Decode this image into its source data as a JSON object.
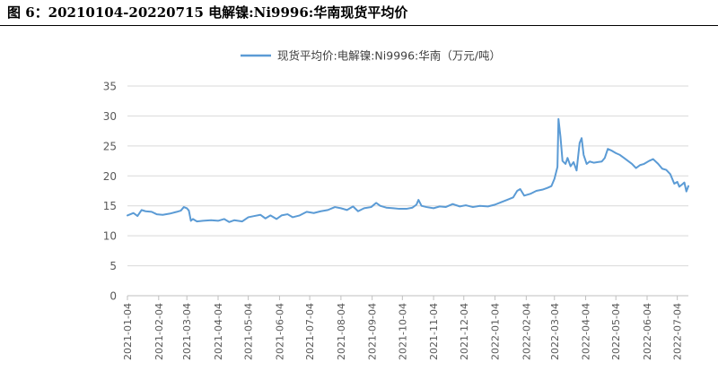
{
  "figure": {
    "title": "图 6：20210104-20220715 电解镍:Ni9996:华南现货平均价"
  },
  "chart_data": {
    "type": "line",
    "title": "",
    "xlabel": "",
    "ylabel": "",
    "ylim": [
      0,
      35
    ],
    "yticks": [
      0,
      5,
      10,
      15,
      20,
      25,
      30,
      35
    ],
    "x_tick_labels": [
      "2021-01-04",
      "2021-02-04",
      "2021-03-04",
      "2021-04-04",
      "2021-05-04",
      "2021-06-04",
      "2021-07-04",
      "2021-08-04",
      "2021-09-04",
      "2021-10-04",
      "2021-11-04",
      "2021-12-04",
      "2022-01-04",
      "2022-02-04",
      "2022-03-04",
      "2022-04-04",
      "2022-05-04",
      "2022-06-04",
      "2022-07-04"
    ],
    "grid": "horizontal",
    "legend_position": "top-center",
    "colors": {
      "series": "#5b9bd5",
      "grid": "#d9d9d9",
      "axis": "#bfbfbf"
    },
    "series": [
      {
        "name": "现货平均价:电解镍:Ni9996:华南（万元/吨）",
        "points": [
          [
            "2021-01-04",
            13.4
          ],
          [
            "2021-01-10",
            13.8
          ],
          [
            "2021-01-14",
            13.3
          ],
          [
            "2021-01-18",
            14.3
          ],
          [
            "2021-01-22",
            14.1
          ],
          [
            "2021-01-28",
            14.0
          ],
          [
            "2021-02-02",
            13.6
          ],
          [
            "2021-02-08",
            13.5
          ],
          [
            "2021-02-15",
            13.7
          ],
          [
            "2021-02-22",
            14.0
          ],
          [
            "2021-02-26",
            14.2
          ],
          [
            "2021-03-01",
            14.8
          ],
          [
            "2021-03-04",
            14.6
          ],
          [
            "2021-03-06",
            14.2
          ],
          [
            "2021-03-08",
            12.5
          ],
          [
            "2021-03-10",
            12.8
          ],
          [
            "2021-03-14",
            12.4
          ],
          [
            "2021-03-20",
            12.5
          ],
          [
            "2021-03-28",
            12.6
          ],
          [
            "2021-04-04",
            12.5
          ],
          [
            "2021-04-10",
            12.8
          ],
          [
            "2021-04-15",
            12.3
          ],
          [
            "2021-04-20",
            12.6
          ],
          [
            "2021-04-28",
            12.4
          ],
          [
            "2021-05-04",
            13.1
          ],
          [
            "2021-05-10",
            13.3
          ],
          [
            "2021-05-16",
            13.5
          ],
          [
            "2021-05-21",
            12.9
          ],
          [
            "2021-05-26",
            13.4
          ],
          [
            "2021-06-01",
            12.8
          ],
          [
            "2021-06-06",
            13.4
          ],
          [
            "2021-06-12",
            13.6
          ],
          [
            "2021-06-17",
            13.1
          ],
          [
            "2021-06-24",
            13.4
          ],
          [
            "2021-07-01",
            14.0
          ],
          [
            "2021-07-08",
            13.8
          ],
          [
            "2021-07-15",
            14.1
          ],
          [
            "2021-07-22",
            14.3
          ],
          [
            "2021-07-29",
            14.8
          ],
          [
            "2021-08-04",
            14.6
          ],
          [
            "2021-08-10",
            14.3
          ],
          [
            "2021-08-16",
            14.9
          ],
          [
            "2021-08-21",
            14.1
          ],
          [
            "2021-08-27",
            14.6
          ],
          [
            "2021-09-03",
            14.8
          ],
          [
            "2021-09-08",
            15.5
          ],
          [
            "2021-09-12",
            15.0
          ],
          [
            "2021-09-18",
            14.7
          ],
          [
            "2021-09-25",
            14.6
          ],
          [
            "2021-10-01",
            14.5
          ],
          [
            "2021-10-08",
            14.5
          ],
          [
            "2021-10-14",
            14.7
          ],
          [
            "2021-10-18",
            15.2
          ],
          [
            "2021-10-20",
            16.0
          ],
          [
            "2021-10-23",
            15.0
          ],
          [
            "2021-10-28",
            14.8
          ],
          [
            "2021-11-04",
            14.6
          ],
          [
            "2021-11-10",
            14.9
          ],
          [
            "2021-11-16",
            14.8
          ],
          [
            "2021-11-23",
            15.3
          ],
          [
            "2021-11-30",
            14.9
          ],
          [
            "2021-12-06",
            15.1
          ],
          [
            "2021-12-13",
            14.8
          ],
          [
            "2021-12-20",
            15.0
          ],
          [
            "2021-12-28",
            14.9
          ],
          [
            "2022-01-04",
            15.2
          ],
          [
            "2022-01-10",
            15.6
          ],
          [
            "2022-01-16",
            16.0
          ],
          [
            "2022-01-22",
            16.4
          ],
          [
            "2022-01-26",
            17.5
          ],
          [
            "2022-01-29",
            17.8
          ],
          [
            "2022-02-02",
            16.7
          ],
          [
            "2022-02-08",
            17.0
          ],
          [
            "2022-02-14",
            17.5
          ],
          [
            "2022-02-20",
            17.7
          ],
          [
            "2022-02-25",
            18.0
          ],
          [
            "2022-03-01",
            18.3
          ],
          [
            "2022-03-04",
            19.5
          ],
          [
            "2022-03-07",
            21.5
          ],
          [
            "2022-03-08",
            29.5
          ],
          [
            "2022-03-10",
            26.5
          ],
          [
            "2022-03-12",
            22.5
          ],
          [
            "2022-03-15",
            22.0
          ],
          [
            "2022-03-17",
            23.0
          ],
          [
            "2022-03-20",
            21.6
          ],
          [
            "2022-03-23",
            22.3
          ],
          [
            "2022-03-26",
            20.9
          ],
          [
            "2022-03-29",
            25.5
          ],
          [
            "2022-03-31",
            26.3
          ],
          [
            "2022-04-02",
            23.5
          ],
          [
            "2022-04-05",
            22.0
          ],
          [
            "2022-04-08",
            22.4
          ],
          [
            "2022-04-12",
            22.2
          ],
          [
            "2022-04-16",
            22.3
          ],
          [
            "2022-04-20",
            22.4
          ],
          [
            "2022-04-23",
            23.0
          ],
          [
            "2022-04-26",
            24.5
          ],
          [
            "2022-04-30",
            24.2
          ],
          [
            "2022-05-04",
            23.8
          ],
          [
            "2022-05-08",
            23.5
          ],
          [
            "2022-05-12",
            23.0
          ],
          [
            "2022-05-16",
            22.5
          ],
          [
            "2022-05-20",
            22.0
          ],
          [
            "2022-05-24",
            21.3
          ],
          [
            "2022-05-28",
            21.8
          ],
          [
            "2022-06-01",
            22.0
          ],
          [
            "2022-06-06",
            22.5
          ],
          [
            "2022-06-10",
            22.8
          ],
          [
            "2022-06-15",
            22.0
          ],
          [
            "2022-06-19",
            21.2
          ],
          [
            "2022-06-23",
            21.0
          ],
          [
            "2022-06-27",
            20.3
          ],
          [
            "2022-07-01",
            18.7
          ],
          [
            "2022-07-04",
            19.0
          ],
          [
            "2022-07-06",
            18.2
          ],
          [
            "2022-07-09",
            18.6
          ],
          [
            "2022-07-11",
            18.9
          ],
          [
            "2022-07-13",
            17.4
          ],
          [
            "2022-07-15",
            18.3
          ]
        ]
      }
    ]
  }
}
